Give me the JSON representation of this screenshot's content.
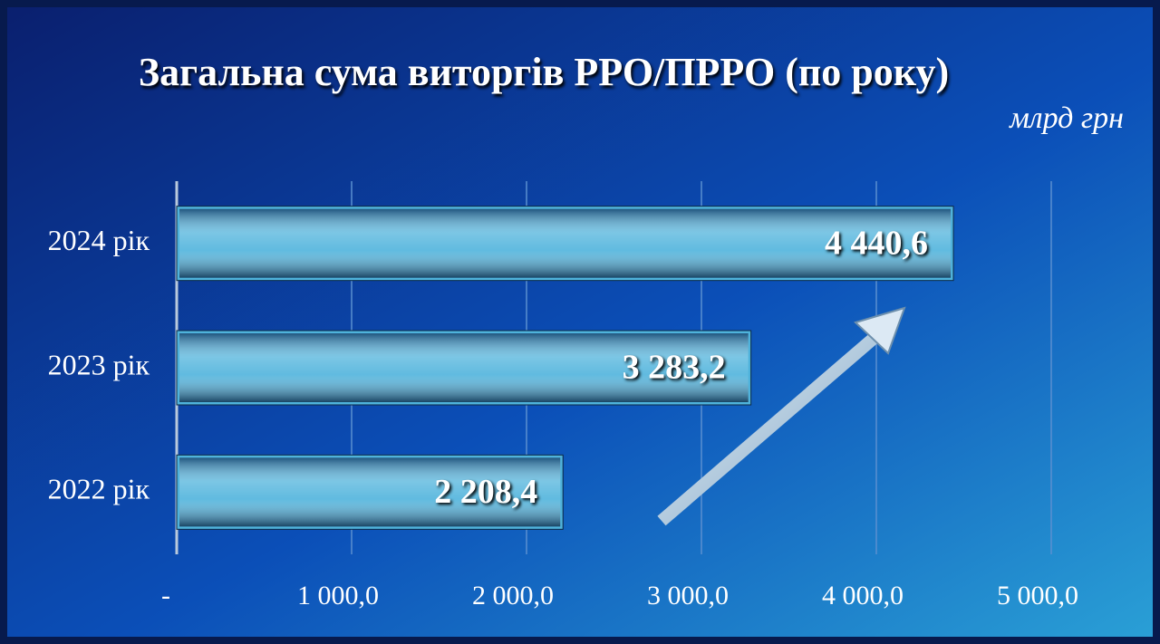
{
  "chart_data": {
    "type": "bar",
    "orientation": "horizontal",
    "title": "Загальна сума виторгів РРО/ПРРО (по року)",
    "unit_label": "млрд грн",
    "categories": [
      "2024 рік",
      "2023 рік",
      "2022 рік"
    ],
    "values": [
      4440.6,
      3283.2,
      2208.4
    ],
    "value_labels": [
      "4 440,6",
      "3 283,2",
      "2 208,4"
    ],
    "color": "#4fb3dc",
    "xlim": [
      0,
      5000
    ],
    "xticks": [
      {
        "value": 0,
        "label": "-"
      },
      {
        "value": 1000,
        "label": "1 000,0"
      },
      {
        "value": 2000,
        "label": "2 000,0"
      },
      {
        "value": 3000,
        "label": "3 000,0"
      },
      {
        "value": 4000,
        "label": "4 000,0"
      },
      {
        "value": 5000,
        "label": "5 000,0"
      }
    ],
    "grid": true
  }
}
